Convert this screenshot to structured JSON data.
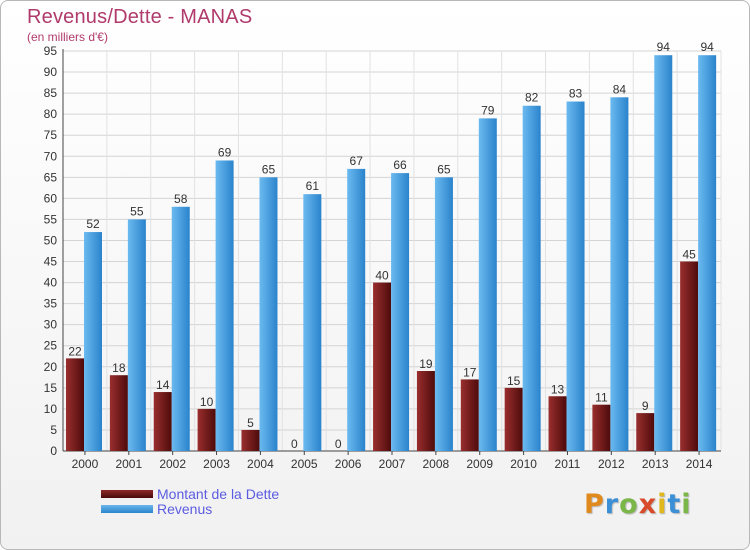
{
  "header": {
    "title": "Revenus/Dette - MANAS",
    "subtitle": "(en milliers d'€)"
  },
  "chart_data": {
    "type": "bar",
    "categories": [
      "2000",
      "2001",
      "2002",
      "2003",
      "2004",
      "2005",
      "2006",
      "2007",
      "2008",
      "2009",
      "2010",
      "2011",
      "2012",
      "2013",
      "2014"
    ],
    "series": [
      {
        "name": "Montant de la Dette",
        "color": "#7a1f1f",
        "values": [
          22,
          18,
          14,
          10,
          5,
          0,
          0,
          40,
          19,
          17,
          15,
          13,
          11,
          9,
          45
        ]
      },
      {
        "name": "Revenus",
        "color": "#4aa3e4",
        "values": [
          52,
          55,
          58,
          69,
          65,
          61,
          67,
          66,
          65,
          79,
          82,
          83,
          84,
          94,
          94
        ]
      }
    ],
    "ylim": [
      0,
      95
    ],
    "yticks": [
      0,
      5,
      10,
      15,
      20,
      25,
      30,
      35,
      40,
      45,
      50,
      55,
      60,
      65,
      70,
      75,
      80,
      85,
      90,
      95
    ],
    "grid": true,
    "legend": "bottom-left"
  },
  "legend": {
    "debt_label": "Montant de la Dette",
    "revenue_label": "Revenus"
  },
  "logo": {
    "letters": [
      "P",
      "r",
      "o",
      "x",
      "i",
      "t",
      "i"
    ],
    "colors": [
      "#e08a1e",
      "#3a8fd6",
      "#7ab648",
      "#d94a2a",
      "#e0b81e",
      "#3a8fd6",
      "#7ab648"
    ]
  }
}
